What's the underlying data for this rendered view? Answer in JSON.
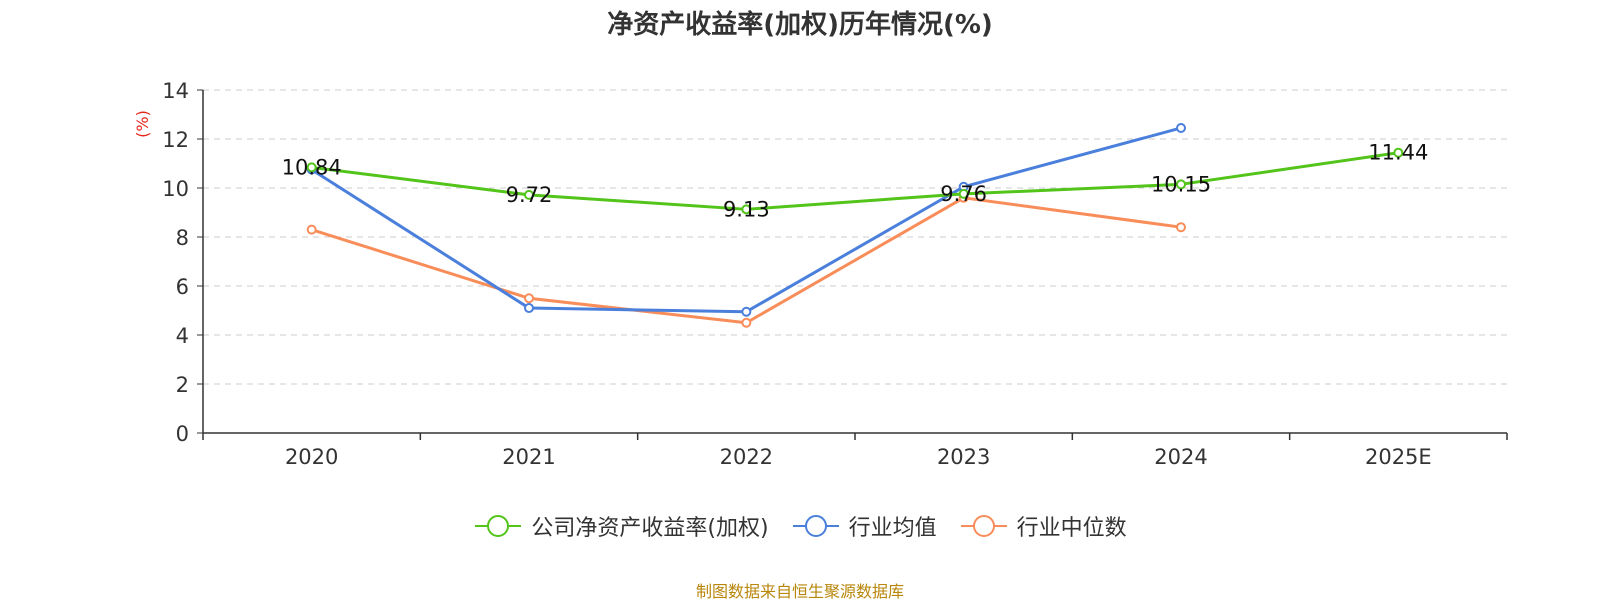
{
  "chart_data": {
    "type": "line",
    "title": "净资产收益率(加权)历年情况(%)",
    "ylabel": "(%)",
    "xlabel": "",
    "categories": [
      "2020",
      "2021",
      "2022",
      "2023",
      "2024",
      "2025E"
    ],
    "ylim": [
      0,
      14
    ],
    "yticks": [
      0,
      2,
      4,
      6,
      8,
      10,
      12,
      14
    ],
    "grid": true,
    "legend_position": "bottom",
    "series": [
      {
        "name": "公司净资产收益率(加权)",
        "color": "#52c41a",
        "values": [
          10.84,
          9.72,
          9.13,
          9.76,
          10.15,
          11.44
        ],
        "labels": [
          "10.84",
          "9.72",
          "9.13",
          "9.76",
          "10.15",
          "11.44"
        ]
      },
      {
        "name": "行业均值",
        "color": "#4a7fdc",
        "values": [
          10.75,
          5.1,
          4.95,
          10.05,
          12.45,
          null
        ]
      },
      {
        "name": "行业中位数",
        "color": "#f98d5a",
        "values": [
          8.3,
          5.5,
          4.5,
          9.6,
          8.4,
          null
        ]
      }
    ]
  },
  "footer": {
    "source": "制图数据来自恒生聚源数据库"
  }
}
